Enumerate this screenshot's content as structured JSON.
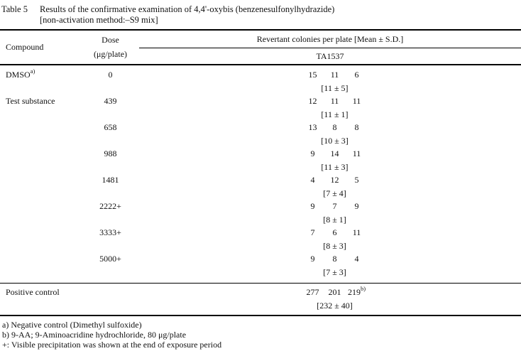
{
  "title": {
    "label": "Table 5",
    "line1": "Results of the confirmative examination of 4,4'-oxybis (benzenesulfonylhydrazide)",
    "line2": "[non-activation method:–S9 mix]"
  },
  "table": {
    "headers": {
      "compound": "Compound",
      "dose_line1": "Dose",
      "dose_line2": "(μg/plate)",
      "revertant": "Revertant colonies per plate [Mean ± S.D.]",
      "strain": "TA1537"
    },
    "rows": [
      {
        "compound": "DMSO",
        "compound_sup": "a)",
        "dose": "0",
        "counts": [
          "15",
          "11",
          "6"
        ],
        "mean": "[11 ± 5]"
      },
      {
        "compound": "Test substance",
        "compound_sup": "",
        "dose": "439",
        "counts": [
          "12",
          "11",
          "11"
        ],
        "mean": "[11 ± 1]"
      },
      {
        "compound": "",
        "compound_sup": "",
        "dose": "658",
        "counts": [
          "13",
          "8",
          "8"
        ],
        "mean": "[10 ± 3]"
      },
      {
        "compound": "",
        "compound_sup": "",
        "dose": "988",
        "counts": [
          "9",
          "14",
          "11"
        ],
        "mean": "[11 ± 3]"
      },
      {
        "compound": "",
        "compound_sup": "",
        "dose": "1481",
        "counts": [
          "4",
          "12",
          "5"
        ],
        "mean": "[7 ± 4]"
      },
      {
        "compound": "",
        "compound_sup": "",
        "dose": "2222+",
        "counts": [
          "9",
          "7",
          "9"
        ],
        "mean": "[8 ± 1]"
      },
      {
        "compound": "",
        "compound_sup": "",
        "dose": "3333+",
        "counts": [
          "7",
          "6",
          "11"
        ],
        "mean": "[8 ± 3]"
      },
      {
        "compound": "",
        "compound_sup": "",
        "dose": "5000+",
        "counts": [
          "9",
          "8",
          "4"
        ],
        "mean": "[7 ± 3]"
      }
    ],
    "positive_control": {
      "compound": "Positive control",
      "dose": "",
      "counts": [
        "277",
        "201",
        "219"
      ],
      "count_sup": "b)",
      "mean": "[232 ± 40]"
    }
  },
  "footnotes": [
    "a) Negative control (Dimethyl sulfoxide)",
    "b) 9-AA; 9-Aminoacridine hydrochloride, 80 μg/plate",
    "+: Visible precipitation was shown at the end of exposure period"
  ]
}
